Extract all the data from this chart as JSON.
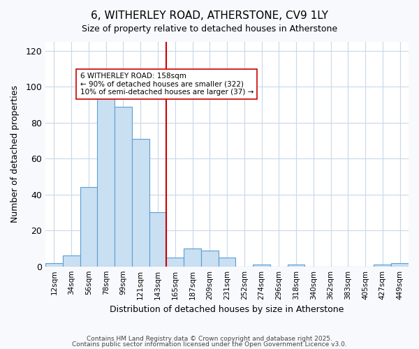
{
  "title": "6, WITHERLEY ROAD, ATHERSTONE, CV9 1LY",
  "subtitle": "Size of property relative to detached houses in Atherstone",
  "xlabel": "Distribution of detached houses by size in Atherstone",
  "ylabel": "Number of detached properties",
  "bin_labels": [
    "12sqm",
    "34sqm",
    "56sqm",
    "78sqm",
    "99sqm",
    "121sqm",
    "143sqm",
    "165sqm",
    "187sqm",
    "209sqm",
    "231sqm",
    "252sqm",
    "274sqm",
    "296sqm",
    "318sqm",
    "340sqm",
    "362sqm",
    "383sqm",
    "405sqm",
    "427sqm",
    "449sqm"
  ],
  "bar_heights": [
    2,
    6,
    44,
    95,
    89,
    71,
    30,
    5,
    10,
    9,
    5,
    0,
    1,
    0,
    1,
    0,
    0,
    0,
    0,
    1,
    2
  ],
  "bar_color": "#c9dff2",
  "bar_edge_color": "#5a9fd4",
  "vline_x": 7,
  "vline_color": "#cc0000",
  "annotation_title": "6 WITHERLEY ROAD: 158sqm",
  "annotation_line1": "← 90% of detached houses are smaller (322)",
  "annotation_line2": "10% of semi-detached houses are larger (37) →",
  "annotation_box_edge": "#cc0000",
  "annotation_box_bg": "white",
  "ylim": [
    0,
    125
  ],
  "yticks": [
    0,
    20,
    40,
    60,
    80,
    100,
    120
  ],
  "footer_line1": "Contains HM Land Registry data © Crown copyright and database right 2025.",
  "footer_line2": "Contains public sector information licensed under the Open Government Licence v3.0.",
  "background_color": "#f7f9fc",
  "plot_background_color": "white",
  "grid_color": "#c8d8e8"
}
